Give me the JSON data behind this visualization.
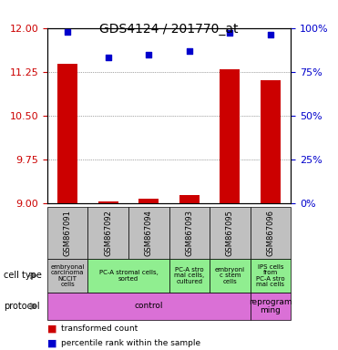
{
  "title": "GDS4124 / 201770_at",
  "samples": [
    "GSM867091",
    "GSM867092",
    "GSM867094",
    "GSM867093",
    "GSM867095",
    "GSM867096"
  ],
  "transformed_counts": [
    11.38,
    9.02,
    9.08,
    9.14,
    11.3,
    11.1
  ],
  "percentile_ranks": [
    98,
    83,
    85,
    87,
    97,
    96
  ],
  "ylim_left": [
    9,
    12
  ],
  "ylim_right": [
    0,
    100
  ],
  "yticks_left": [
    9,
    9.75,
    10.5,
    11.25,
    12
  ],
  "yticks_right": [
    0,
    25,
    50,
    75,
    100
  ],
  "cell_types": [
    {
      "label": "embryonal carcinoma NCCIT cells",
      "color": "#d0d0d0",
      "span": [
        0,
        1
      ]
    },
    {
      "label": "PC-A stromal cells, sorted",
      "color": "#90ee90",
      "span": [
        1,
        3
      ]
    },
    {
      "label": "PC-A stromal cells, cultured",
      "color": "#90ee90",
      "span": [
        3,
        4
      ]
    },
    {
      "label": "embryonic stem cells",
      "color": "#90ee90",
      "span": [
        4,
        5
      ]
    },
    {
      "label": "IPS cells from PC-A stromal cells",
      "color": "#90ee90",
      "span": [
        5,
        6
      ]
    }
  ],
  "protocols": [
    {
      "label": "control",
      "color": "#da70d6",
      "span": [
        0,
        5
      ]
    },
    {
      "label": "reprogramming",
      "color": "#da70d6",
      "span": [
        5,
        6
      ]
    }
  ],
  "bar_color": "#cc0000",
  "scatter_color": "#0000cc",
  "grid_color": "#555555",
  "left_axis_color": "#cc0000",
  "right_axis_color": "#0000cc"
}
